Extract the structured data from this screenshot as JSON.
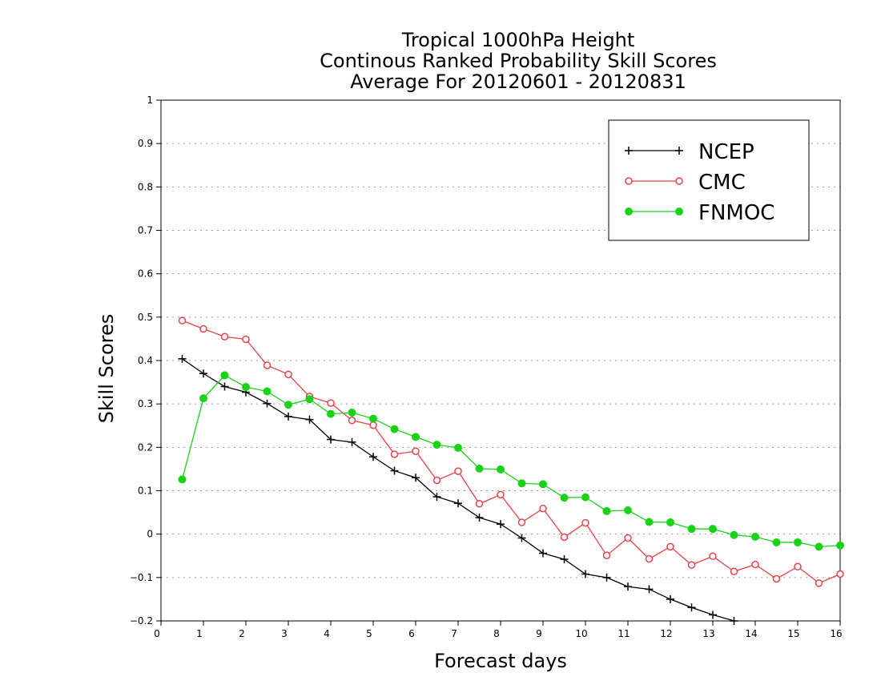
{
  "chart_data": {
    "type": "line",
    "title_lines": [
      "Tropical 1000hPa Height",
      "Continous Ranked Probability Skill Scores",
      "Average For 20120601 - 20120831"
    ],
    "xlabel": "Forecast days",
    "ylabel": "Skill Scores",
    "xlim": [
      0,
      16
    ],
    "ylim": [
      -0.2,
      1
    ],
    "x_ticks": [
      "0",
      "1",
      "2",
      "3",
      "4",
      "5",
      "6",
      "7",
      "8",
      "9",
      "10",
      "11",
      "12",
      "13",
      "14",
      "15",
      "16"
    ],
    "y_ticks": [
      "−0.2",
      "−0.1",
      "0",
      "0.1",
      "0.2",
      "0.3",
      "0.4",
      "0.5",
      "0.6",
      "0.7",
      "0.8",
      "0.9",
      "1"
    ],
    "grid": true,
    "legend_position": "top-right",
    "series": [
      {
        "name": "NCEP",
        "color": "#000000",
        "marker": "plus",
        "x": [
          0.5,
          1,
          1.5,
          2,
          2.5,
          3,
          3.5,
          4,
          4.5,
          5,
          5.5,
          6,
          6.5,
          7,
          7.5,
          8,
          8.5,
          9,
          9.5,
          10,
          10.5,
          11,
          11.5,
          12,
          12.5,
          13,
          13.5
        ],
        "values": [
          0.404,
          0.37,
          0.34,
          0.327,
          0.301,
          0.271,
          0.264,
          0.218,
          0.212,
          0.178,
          0.146,
          0.13,
          0.086,
          0.071,
          0.038,
          0.023,
          -0.009,
          -0.044,
          -0.058,
          -0.092,
          -0.1,
          -0.121,
          -0.127,
          -0.15,
          -0.169,
          -0.186,
          -0.2
        ]
      },
      {
        "name": "CMC",
        "color": "#e8424a",
        "marker": "open-circle",
        "x": [
          0.5,
          1,
          1.5,
          2,
          2.5,
          3,
          3.5,
          4,
          4.5,
          5,
          5.5,
          6,
          6.5,
          7,
          7.5,
          8,
          8.5,
          9,
          9.5,
          10,
          10.5,
          11,
          11.5,
          12,
          12.5,
          13,
          13.5,
          14,
          14.5,
          15,
          15.5,
          16
        ],
        "values": [
          0.492,
          0.473,
          0.455,
          0.449,
          0.389,
          0.368,
          0.317,
          0.302,
          0.262,
          0.251,
          0.184,
          0.191,
          0.124,
          0.145,
          0.07,
          0.091,
          0.027,
          0.059,
          -0.007,
          0.026,
          -0.049,
          -0.009,
          -0.057,
          -0.029,
          -0.071,
          -0.051,
          -0.086,
          -0.07,
          -0.103,
          -0.075,
          -0.113,
          -0.092
        ]
      },
      {
        "name": "FNMOC",
        "color": "#1ad21a",
        "marker": "filled-circle",
        "x": [
          0.5,
          1,
          1.5,
          2,
          2.5,
          3,
          3.5,
          4,
          4.5,
          5,
          5.5,
          6,
          6.5,
          7,
          7.5,
          8,
          8.5,
          9,
          9.5,
          10,
          10.5,
          11,
          11.5,
          12,
          12.5,
          13,
          13.5,
          14,
          14.5,
          15,
          15.5,
          16
        ],
        "values": [
          0.126,
          0.313,
          0.366,
          0.339,
          0.329,
          0.298,
          0.311,
          0.277,
          0.28,
          0.266,
          0.242,
          0.224,
          0.206,
          0.199,
          0.151,
          0.149,
          0.117,
          0.115,
          0.084,
          0.085,
          0.053,
          0.055,
          0.028,
          0.027,
          0.012,
          0.012,
          -0.002,
          -0.006,
          -0.019,
          -0.019,
          -0.029,
          -0.026
        ]
      }
    ]
  }
}
